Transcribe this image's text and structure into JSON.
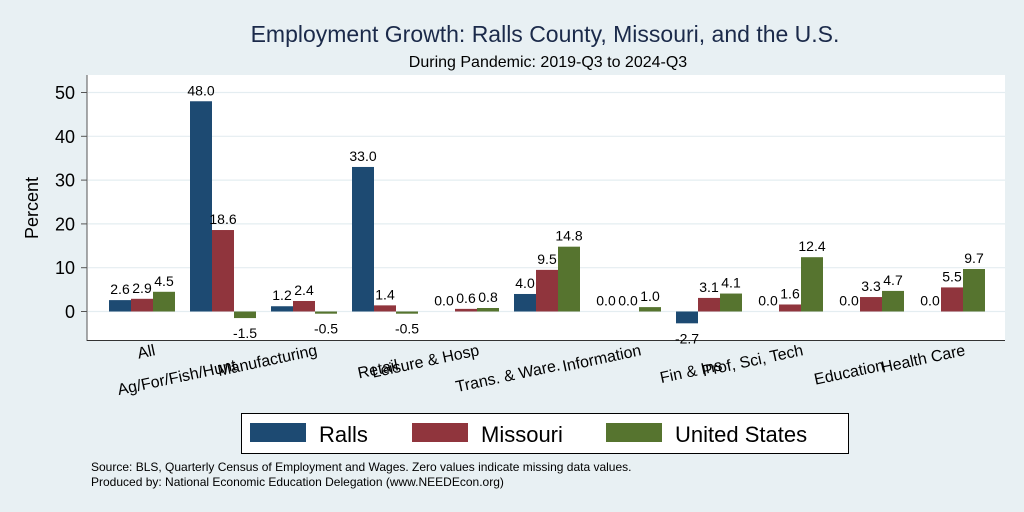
{
  "chart_data": {
    "type": "bar",
    "title": "Employment Growth: Ralls County, Missouri, and the U.S.",
    "subtitle": "During Pandemic: 2019-Q3 to 2024-Q3",
    "xlabel": "",
    "ylabel": "Percent",
    "ylim": [
      -6.5,
      54
    ],
    "yticks": [
      0,
      10,
      20,
      30,
      40,
      50
    ],
    "grid": true,
    "legend_position": "bottom",
    "categories": [
      "All",
      "Ag/For/Fish/Hunt",
      "Manufacturing",
      "Retail",
      "Leisure & Hosp",
      "Trans. & Ware.",
      "Information",
      "Fin & Ins",
      "Prof, Sci, Tech",
      "Education",
      "Health Care"
    ],
    "series": [
      {
        "name": "Ralls",
        "color": "#1d4a72",
        "values": [
          2.6,
          48.0,
          1.2,
          33.0,
          0.0,
          4.0,
          0.0,
          -2.7,
          0.0,
          0.0,
          0.0
        ]
      },
      {
        "name": "Missouri",
        "color": "#90353d",
        "values": [
          2.9,
          18.6,
          2.4,
          1.4,
          0.6,
          9.5,
          0.0,
          3.1,
          1.6,
          3.3,
          5.5
        ]
      },
      {
        "name": "United States",
        "color": "#56742f",
        "values": [
          4.5,
          -1.5,
          -0.5,
          -0.5,
          0.8,
          14.8,
          1.0,
          4.1,
          12.4,
          4.7,
          9.7
        ]
      }
    ],
    "notes": [
      "Source: BLS, Quarterly Census of Employment and Wages. Zero values indicate missing data values.",
      "Produced by: National Economic Education Delegation (www.NEEDEcon.org)"
    ]
  }
}
